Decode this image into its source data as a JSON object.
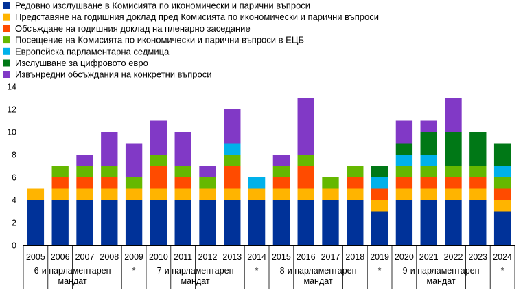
{
  "chart_data": {
    "type": "bar",
    "stacked": true,
    "categories": [
      "2005",
      "2006",
      "2007",
      "2008",
      "2009",
      "2010",
      "2011",
      "2012",
      "2013",
      "2014",
      "2015",
      "2016",
      "2017",
      "2018",
      "2019",
      "2020",
      "2021",
      "2022",
      "2023",
      "2024"
    ],
    "series": [
      {
        "name": "Редовно изслушване в Комисията по икономически и парични въпроси",
        "color": "#003299",
        "values": [
          4,
          4,
          4,
          4,
          4,
          4,
          4,
          4,
          4,
          4,
          4,
          4,
          4,
          4,
          3,
          4,
          4,
          4,
          4,
          3
        ]
      },
      {
        "name": "Представяне на годишния доклад пред Комисията по икономически и парични въпроси",
        "color": "#ffb400",
        "values": [
          1,
          1,
          1,
          1,
          1,
          1,
          1,
          1,
          1,
          1,
          1,
          1,
          1,
          1,
          1,
          1,
          1,
          1,
          1,
          1
        ]
      },
      {
        "name": "Обсъждане на годишния доклад на пленарно заседание",
        "color": "#ff4b00",
        "values": [
          0,
          1,
          1,
          1,
          0,
          2,
          1,
          0,
          2,
          0,
          1,
          2,
          0,
          1,
          1,
          1,
          1,
          1,
          1,
          1
        ]
      },
      {
        "name": "Посещение на Комисията по икономически и парични въпроси в ЕЦБ",
        "color": "#65b800",
        "values": [
          0,
          1,
          1,
          1,
          1,
          1,
          1,
          1,
          1,
          0,
          1,
          1,
          1,
          1,
          0,
          1,
          1,
          1,
          1,
          1
        ]
      },
      {
        "name": "Европейска парламентарна седмица",
        "color": "#00b1ea",
        "values": [
          0,
          0,
          0,
          0,
          0,
          0,
          0,
          0,
          1,
          1,
          0,
          0,
          0,
          0,
          1,
          1,
          1,
          0,
          0,
          1
        ]
      },
      {
        "name": "Изслушване за цифровото евро",
        "color": "#007816",
        "values": [
          0,
          0,
          0,
          0,
          0,
          0,
          0,
          0,
          0,
          0,
          0,
          0,
          0,
          0,
          1,
          1,
          2,
          3,
          3,
          2
        ]
      },
      {
        "name": "Извънредни обсъждания на конкретни въпроси",
        "color": "#8139c6",
        "values": [
          0,
          0,
          1,
          3,
          3,
          3,
          3,
          1,
          3,
          0,
          1,
          5,
          0,
          0,
          0,
          2,
          1,
          3,
          0,
          0
        ]
      }
    ],
    "ylim": [
      0,
      14
    ],
    "yticks": [
      0,
      2,
      4,
      6,
      8,
      10,
      12,
      14
    ],
    "ylabel": "",
    "xlabel": "",
    "grid": false,
    "legend_position": "top-left",
    "groups": [
      {
        "label_line1": "6-и парламентарен",
        "label_line2": "мандат",
        "from": 0,
        "to": 3
      },
      {
        "label_line1": "*",
        "label_line2": "",
        "from": 4,
        "to": 4
      },
      {
        "label_line1": "7-и парламентарен",
        "label_line2": "мандат",
        "from": 5,
        "to": 8
      },
      {
        "label_line1": "*",
        "label_line2": "",
        "from": 9,
        "to": 9
      },
      {
        "label_line1": "8-и парламентарен",
        "label_line2": "мандат",
        "from": 10,
        "to": 13
      },
      {
        "label_line1": "*",
        "label_line2": "",
        "from": 14,
        "to": 14
      },
      {
        "label_line1": "9-и парламентарен",
        "label_line2": "мандат",
        "from": 15,
        "to": 18
      },
      {
        "label_line1": "*",
        "label_line2": "",
        "from": 19,
        "to": 19
      }
    ]
  }
}
